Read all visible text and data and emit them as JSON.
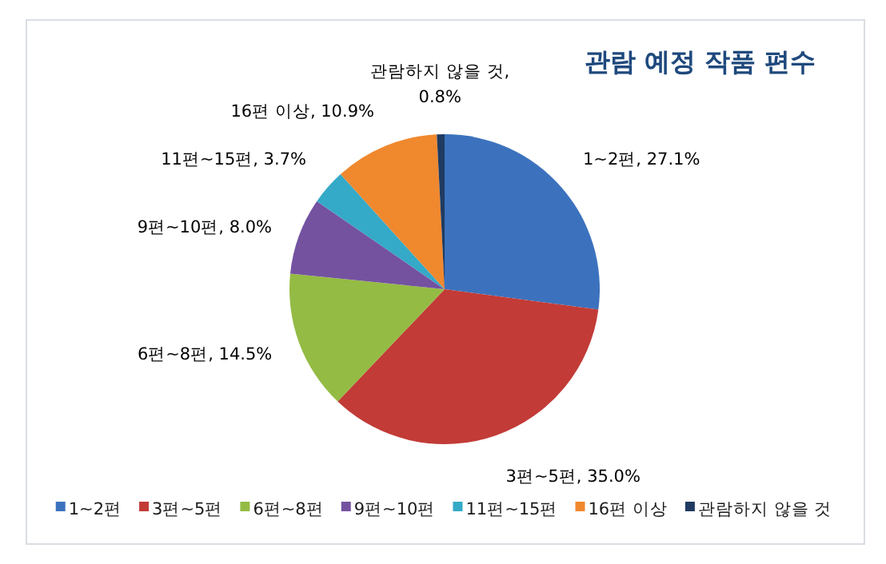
{
  "chart_data": {
    "type": "pie",
    "title": "관람 예정 작품 편수",
    "categories": [
      "1~2편",
      "3편~5편",
      "6편~8편",
      "9편~10편",
      "11편~15편",
      "16편 이상",
      "관람하지 않을 것"
    ],
    "values": [
      27.1,
      35.0,
      14.5,
      8.0,
      3.7,
      10.9,
      0.8
    ],
    "colors": [
      "#3c72bd",
      "#c23b37",
      "#94bb44",
      "#7452a0",
      "#35a9c8",
      "#f0882e",
      "#1f3b61"
    ],
    "value_labels": [
      "1~2편, 27.1%",
      "3편~5편, 35.0%",
      "6편~8편, 14.5%",
      "9편~10편, 8.0%",
      "11편~15편, 3.7%",
      "16편 이상, 10.9%",
      "관람하지 않을 것, 0.8%"
    ],
    "legend": "bottom"
  }
}
